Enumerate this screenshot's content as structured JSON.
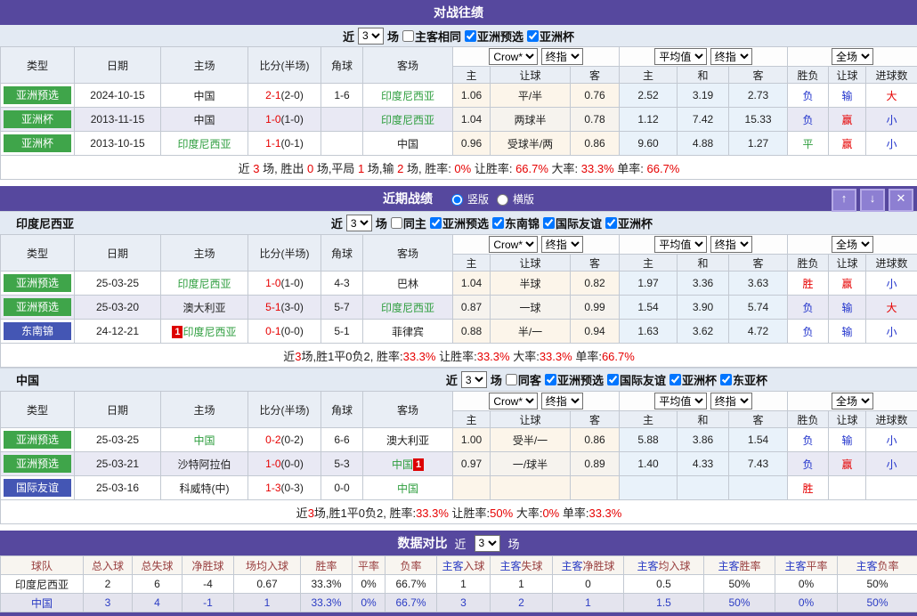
{
  "common": {
    "near_label": "近",
    "games_label": "场",
    "near_value": "3",
    "col_headers": [
      "类型",
      "日期",
      "主场",
      "比分(半场)",
      "角球",
      "客场"
    ],
    "sub_headers": [
      "主",
      "让球",
      "客",
      "主",
      "和",
      "客",
      "胜负",
      "让球",
      "进球数"
    ],
    "selects": {
      "crow": "Crow*",
      "zhi1": "终指",
      "avg": "平均值",
      "zhi2": "终指",
      "full": "全场"
    }
  },
  "h2h": {
    "title": "对战往绩",
    "filter": {
      "checkboxes": [
        {
          "label": "主客相同",
          "checked": false
        },
        {
          "label": "亚洲预选",
          "checked": true
        },
        {
          "label": "亚洲杯",
          "checked": true
        }
      ]
    },
    "rows": [
      {
        "type": "亚洲预选",
        "type_style": "green",
        "date": "2024-10-15",
        "home": {
          "name": "中国",
          "style": "k"
        },
        "score": "2-1",
        "half": "(2-0)",
        "corner": "1-6",
        "away": {
          "name": "印度尼西亚",
          "style": "g"
        },
        "crow": [
          "1.06",
          "平/半",
          "0.76"
        ],
        "avg": [
          "2.52",
          "3.19",
          "2.73"
        ],
        "results": [
          [
            "负",
            "b"
          ],
          [
            "输",
            "b"
          ],
          [
            "大",
            "r"
          ]
        ]
      },
      {
        "type": "亚洲杯",
        "type_style": "green",
        "date": "2013-11-15",
        "home": {
          "name": "中国",
          "style": "k"
        },
        "score": "1-0",
        "half": "(1-0)",
        "corner": "",
        "away": {
          "name": "印度尼西亚",
          "style": "g"
        },
        "crow": [
          "1.04",
          "两球半",
          "0.78"
        ],
        "avg": [
          "1.12",
          "7.42",
          "15.33"
        ],
        "results": [
          [
            "负",
            "b"
          ],
          [
            "赢",
            "r"
          ],
          [
            "小",
            "b"
          ]
        ]
      },
      {
        "type": "亚洲杯",
        "type_style": "green",
        "date": "2013-10-15",
        "home": {
          "name": "印度尼西亚",
          "style": "g"
        },
        "score": "1-1",
        "half": "(0-1)",
        "corner": "",
        "away": {
          "name": "中国",
          "style": "k"
        },
        "crow": [
          "0.96",
          "受球半/两",
          "0.86"
        ],
        "avg": [
          "9.60",
          "4.88",
          "1.27"
        ],
        "results": [
          [
            "平",
            "g"
          ],
          [
            "赢",
            "r"
          ],
          [
            "小",
            "b"
          ]
        ]
      }
    ],
    "summary": [
      {
        "t": "近 ",
        "c": "k"
      },
      {
        "t": "3",
        "c": "r"
      },
      {
        "t": " 场, 胜出 ",
        "c": "k"
      },
      {
        "t": "0",
        "c": "r"
      },
      {
        "t": " 场,平局 ",
        "c": "k"
      },
      {
        "t": "1",
        "c": "r"
      },
      {
        "t": " 场,输 ",
        "c": "k"
      },
      {
        "t": "2",
        "c": "r"
      },
      {
        "t": " 场, 胜率: ",
        "c": "k"
      },
      {
        "t": "0%",
        "c": "r"
      },
      {
        "t": " 让胜率: ",
        "c": "k"
      },
      {
        "t": "66.7%",
        "c": "r"
      },
      {
        "t": " 大率: ",
        "c": "k"
      },
      {
        "t": "33.3%",
        "c": "r"
      },
      {
        "t": " 单率: ",
        "c": "k"
      },
      {
        "t": "66.7%",
        "c": "r"
      }
    ]
  },
  "recent": {
    "title": "近期战绩",
    "radios": [
      {
        "label": "竖版",
        "checked": true
      },
      {
        "label": "横版",
        "checked": false
      }
    ],
    "buttons": {
      "up": "↑",
      "down": "↓",
      "close": "✕"
    },
    "indonesia": {
      "name": "印度尼西亚",
      "filter": {
        "checkboxes": [
          {
            "label": "同主",
            "checked": false
          },
          {
            "label": "亚洲预选",
            "checked": true
          },
          {
            "label": "东南锦",
            "checked": true
          },
          {
            "label": "国际友谊",
            "checked": true
          },
          {
            "label": "亚洲杯",
            "checked": true
          }
        ]
      },
      "rows": [
        {
          "type": "亚洲预选",
          "type_style": "green",
          "date": "25-03-25",
          "home": {
            "name": "印度尼西亚",
            "style": "g"
          },
          "score": "1-0",
          "half": "(1-0)",
          "corner": "4-3",
          "away": {
            "name": "巴林",
            "style": "k"
          },
          "crow": [
            "1.04",
            "半球",
            "0.82"
          ],
          "avg": [
            "1.97",
            "3.36",
            "3.63"
          ],
          "results": [
            [
              "胜",
              "r"
            ],
            [
              "赢",
              "r"
            ],
            [
              "小",
              "b"
            ]
          ]
        },
        {
          "type": "亚洲预选",
          "type_style": "green",
          "date": "25-03-20",
          "home": {
            "name": "澳大利亚",
            "style": "k"
          },
          "score": "5-1",
          "half": "(3-0)",
          "corner": "5-7",
          "away": {
            "name": "印度尼西亚",
            "style": "g"
          },
          "crow": [
            "0.87",
            "一球",
            "0.99"
          ],
          "avg": [
            "1.54",
            "3.90",
            "5.74"
          ],
          "results": [
            [
              "负",
              "b"
            ],
            [
              "输",
              "b"
            ],
            [
              "大",
              "r"
            ]
          ]
        },
        {
          "type": "东南锦",
          "type_style": "blue",
          "date": "24-12-21",
          "home": {
            "name": "印度尼西亚",
            "style": "g",
            "badge": "1",
            "badge_pos": "before"
          },
          "score": "0-1",
          "half": "(0-0)",
          "corner": "5-1",
          "away": {
            "name": "菲律宾",
            "style": "k"
          },
          "crow": [
            "0.88",
            "半/一",
            "0.94"
          ],
          "avg": [
            "1.63",
            "3.62",
            "4.72"
          ],
          "results": [
            [
              "负",
              "b"
            ],
            [
              "输",
              "b"
            ],
            [
              "小",
              "b"
            ]
          ]
        }
      ],
      "summary": [
        {
          "t": "近",
          "c": "k"
        },
        {
          "t": "3",
          "c": "r"
        },
        {
          "t": "场,胜1平0负2, 胜率:",
          "c": "k"
        },
        {
          "t": "33.3%",
          "c": "r"
        },
        {
          "t": " 让胜率:",
          "c": "k"
        },
        {
          "t": "33.3%",
          "c": "r"
        },
        {
          "t": " 大率:",
          "c": "k"
        },
        {
          "t": "33.3%",
          "c": "r"
        },
        {
          "t": " 单率:",
          "c": "k"
        },
        {
          "t": "66.7%",
          "c": "r"
        }
      ]
    },
    "china": {
      "name": "中国",
      "filter": {
        "checkboxes": [
          {
            "label": "同客",
            "checked": false
          },
          {
            "label": "亚洲预选",
            "checked": true
          },
          {
            "label": "国际友谊",
            "checked": true
          },
          {
            "label": "亚洲杯",
            "checked": true
          },
          {
            "label": "东亚杯",
            "checked": true
          }
        ]
      },
      "rows": [
        {
          "type": "亚洲预选",
          "type_style": "green",
          "date": "25-03-25",
          "home": {
            "name": "中国",
            "style": "g"
          },
          "score": "0-2",
          "half": "(0-2)",
          "corner": "6-6",
          "away": {
            "name": "澳大利亚",
            "style": "k"
          },
          "crow": [
            "1.00",
            "受半/一",
            "0.86"
          ],
          "avg": [
            "5.88",
            "3.86",
            "1.54"
          ],
          "results": [
            [
              "负",
              "b"
            ],
            [
              "输",
              "b"
            ],
            [
              "小",
              "b"
            ]
          ]
        },
        {
          "type": "亚洲预选",
          "type_style": "green",
          "date": "25-03-21",
          "home": {
            "name": "沙特阿拉伯",
            "style": "k"
          },
          "score": "1-0",
          "half": "(0-0)",
          "corner": "5-3",
          "away": {
            "name": "中国",
            "style": "g",
            "badge": "1",
            "badge_pos": "after"
          },
          "crow": [
            "0.97",
            "一/球半",
            "0.89"
          ],
          "avg": [
            "1.40",
            "4.33",
            "7.43"
          ],
          "results": [
            [
              "负",
              "b"
            ],
            [
              "赢",
              "r"
            ],
            [
              "小",
              "b"
            ]
          ]
        },
        {
          "type": "国际友谊",
          "type_style": "blue",
          "date": "25-03-16",
          "home": {
            "name": "科威特(中)",
            "style": "k"
          },
          "score": "1-3",
          "half": "(0-3)",
          "corner": "0-0",
          "away": {
            "name": "中国",
            "style": "g"
          },
          "crow": [
            "",
            "",
            ""
          ],
          "avg": [
            "",
            "",
            ""
          ],
          "results": [
            [
              "胜",
              "r"
            ],
            [
              "",
              ""
            ],
            [
              "",
              ""
            ]
          ]
        }
      ],
      "summary": [
        {
          "t": "近",
          "c": "k"
        },
        {
          "t": "3",
          "c": "r"
        },
        {
          "t": "场,胜1平0负2, 胜率:",
          "c": "k"
        },
        {
          "t": "33.3%",
          "c": "r"
        },
        {
          "t": " 让胜率:",
          "c": "k"
        },
        {
          "t": "50%",
          "c": "r"
        },
        {
          "t": " 大率:",
          "c": "k"
        },
        {
          "t": "0%",
          "c": "r"
        },
        {
          "t": " 单率:",
          "c": "k"
        },
        {
          "t": "33.3%",
          "c": "r"
        }
      ]
    }
  },
  "comparison": {
    "title": "数据对比",
    "headers": [
      "球队",
      "总入球",
      "总失球",
      "净胜球",
      "场均入球",
      "胜率",
      "平率",
      "负率",
      "主客入球",
      "主客失球",
      "主客净胜球",
      "主客均入球",
      "主客胜率",
      "主客平率",
      "主客负率"
    ],
    "rows": [
      {
        "style": "indo",
        "cells": [
          "印度尼西亚",
          "2",
          "6",
          "-4",
          "0.67",
          "33.3%",
          "0%",
          "66.7%",
          "1",
          "1",
          "0",
          "0.5",
          "50%",
          "0%",
          "50%"
        ]
      },
      {
        "style": "china",
        "cells": [
          "中国",
          "3",
          "4",
          "-1",
          "1",
          "33.3%",
          "0%",
          "66.7%",
          "3",
          "2",
          "1",
          "1.5",
          "50%",
          "0%",
          "50%"
        ]
      }
    ]
  }
}
